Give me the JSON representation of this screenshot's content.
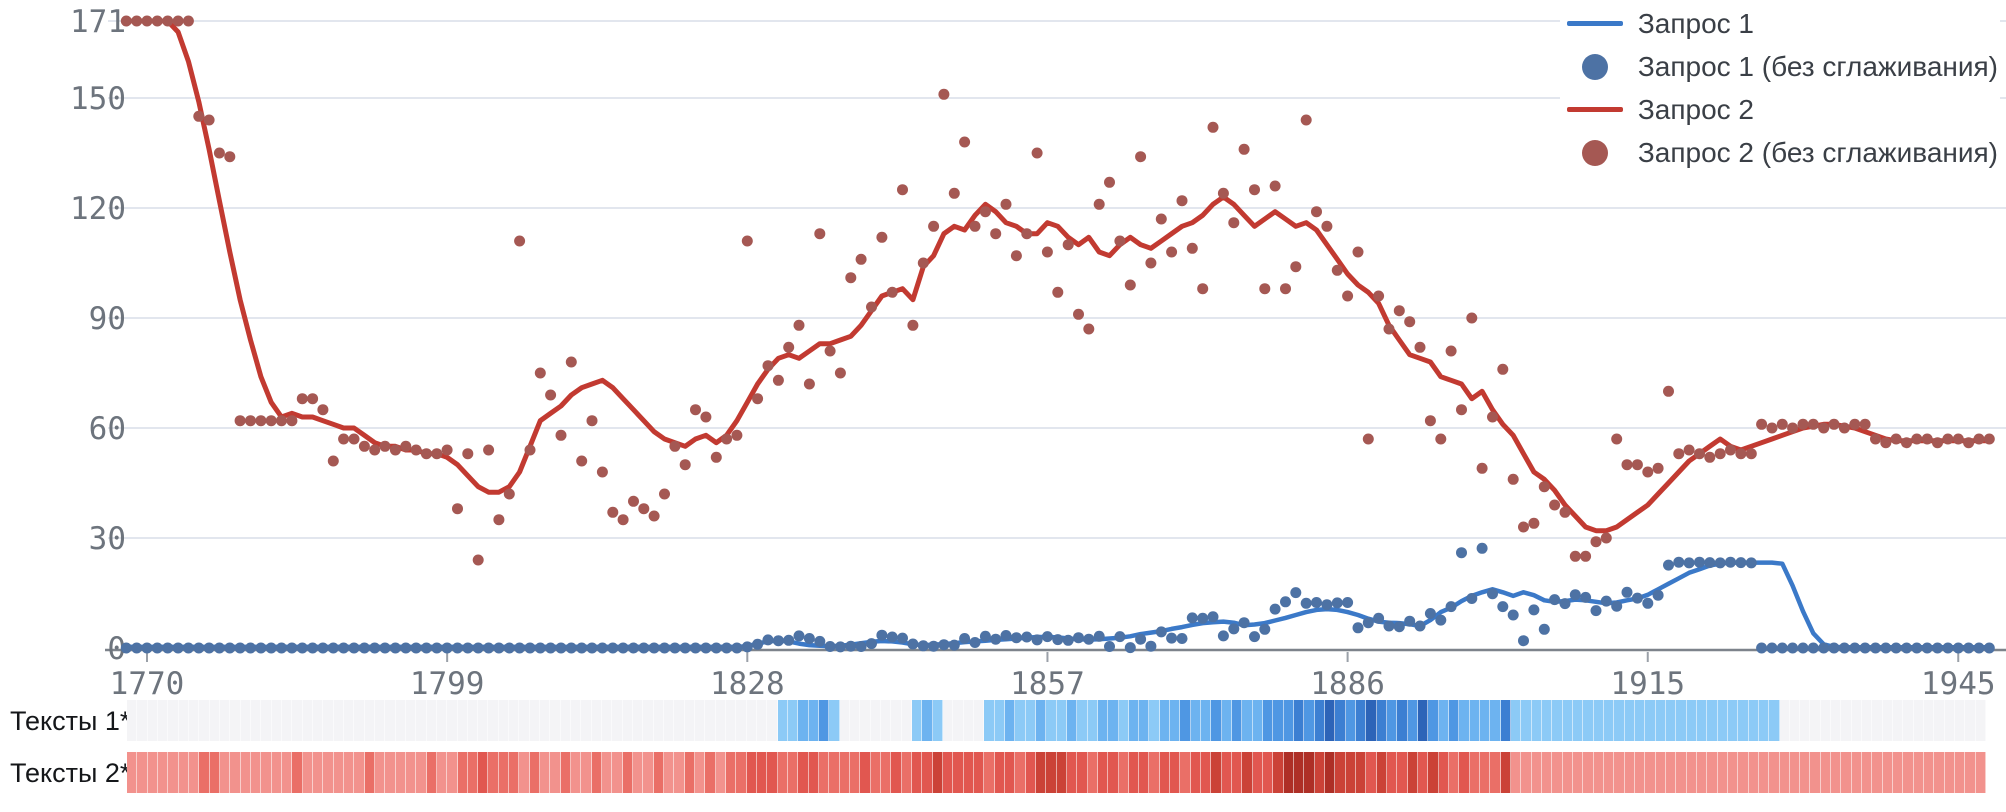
{
  "legend": {
    "items": [
      {
        "label": "Запрос 1",
        "type": "line",
        "color": "#3b79c8"
      },
      {
        "label": "Запрос 1 (без сглаживания)",
        "type": "dot",
        "color": "#4d72a4"
      },
      {
        "label": "Запрос 2",
        "type": "line",
        "color": "#c23a31"
      },
      {
        "label": "Запрос 2 (без сглаживания)",
        "type": "dot",
        "color": "#a55853"
      }
    ]
  },
  "strips": {
    "texts1_label": "Тексты 1*",
    "texts2_label": "Тексты 2*"
  },
  "chart_data": {
    "type": "line",
    "title": "",
    "xlabel": "",
    "ylabel": "",
    "grid": true,
    "legend_position": "top-right",
    "x_range": [
      1768,
      1948
    ],
    "ylim": [
      0,
      171
    ],
    "y_ticks": [
      0,
      30,
      60,
      90,
      120,
      150,
      171
    ],
    "y_tick_labels": [
      "0",
      "30",
      "60",
      "90",
      "120",
      "150",
      "171"
    ],
    "x_ticks": [
      1770,
      1799,
      1828,
      1857,
      1886,
      1915,
      1945
    ],
    "x_tick_labels": [
      "1770",
      "1799",
      "1828",
      "1857",
      "1886",
      "1915",
      "1945"
    ],
    "series": [
      {
        "name": "Запрос 1",
        "type": "line",
        "color": "#3b79c8",
        "start_year": 1768,
        "values": [
          0.3,
          0.3,
          0.3,
          0.3,
          0.3,
          0.3,
          0.3,
          0.3,
          0.3,
          0.3,
          0.3,
          0.3,
          0.3,
          0.3,
          0.3,
          0.3,
          0.3,
          0.3,
          0.3,
          0.3,
          0.3,
          0.3,
          0.3,
          0.3,
          0.3,
          0.3,
          0.3,
          0.3,
          0.3,
          0.3,
          0.3,
          0.3,
          0.3,
          0.3,
          0.3,
          0.3,
          0.3,
          0.3,
          0.3,
          0.3,
          0.3,
          0.3,
          0.3,
          0.3,
          0.3,
          0.3,
          0.3,
          0.3,
          0.3,
          0.3,
          0.3,
          0.3,
          0.3,
          0.3,
          0.3,
          0.3,
          0.3,
          0.3,
          0.3,
          0.3,
          0.5,
          1.2,
          1.8,
          2,
          1.8,
          1.2,
          0.8,
          0.6,
          0.5,
          0.6,
          0.9,
          1.3,
          1.7,
          1.9,
          1.8,
          1.5,
          1,
          0.8,
          0.9,
          1.1,
          1.3,
          1.6,
          1.8,
          2,
          2.2,
          2.4,
          2.6,
          2.8,
          3,
          3,
          2.9,
          2.6,
          2.4,
          2.3,
          2.4,
          2.6,
          2.8,
          3.2,
          3.8,
          4.2,
          4.6,
          5.2,
          5.7,
          6.3,
          6.8,
          7,
          7.2,
          6.9,
          6.2,
          6.4,
          6.8,
          7.5,
          8.2,
          9,
          9.8,
          10.4,
          10.6,
          10.4,
          9.8,
          9,
          8,
          7.2,
          6.9,
          6.8,
          6.5,
          6,
          7.6,
          9.8,
          11,
          12.8,
          14.2,
          15.2,
          16,
          15.2,
          14.2,
          15.2,
          14.4,
          13,
          12.6,
          12.8,
          13.2,
          13,
          12.6,
          12.2,
          12.4,
          13,
          13.5,
          14.5,
          16,
          17.5,
          19,
          20.5,
          21.5,
          22.5,
          23,
          23.3,
          23.3,
          23.3,
          23.3,
          23.3,
          23,
          17,
          10,
          4,
          1,
          0.3,
          0.2,
          0.2,
          0.2,
          0.2,
          0.2,
          0.2,
          0.2,
          0.2,
          0.2,
          0.2,
          0.2,
          0.2,
          0.2,
          0.2,
          0.2
        ]
      },
      {
        "name": "Запрос 1 (без сглаживания)",
        "type": "scatter",
        "color": "#4d72a4",
        "start_year": 1768,
        "values": [
          0,
          0,
          0,
          0,
          0,
          0,
          0,
          0,
          0,
          0,
          0,
          0,
          0,
          0,
          0,
          0,
          0,
          0,
          0,
          0,
          0,
          0,
          0,
          0,
          0,
          0,
          0,
          0,
          0,
          0,
          0,
          0,
          0,
          0,
          0,
          0,
          0,
          0,
          0,
          0,
          0,
          0,
          0,
          0,
          0,
          0,
          0,
          0,
          0,
          0,
          0,
          0,
          0,
          0,
          0,
          0,
          0,
          0,
          0,
          0,
          0.3,
          1,
          2.2,
          2,
          2.1,
          3.3,
          2.6,
          1.8,
          0.4,
          0.3,
          0.5,
          0.4,
          1.2,
          3.5,
          3,
          2.7,
          1.1,
          0.6,
          0.5,
          0.9,
          0.8,
          2.6,
          1.5,
          3.2,
          2.4,
          3.4,
          2.8,
          3,
          2.2,
          3.1,
          2.3,
          2.1,
          2.8,
          2.4,
          3.2,
          0.4,
          3.1,
          0.1,
          2.4,
          0.5,
          4.4,
          2.7,
          2.6,
          8.2,
          8.1,
          8.5,
          3.3,
          5.2,
          6.9,
          3.1,
          5.1,
          10.6,
          12.6,
          15.1,
          12.2,
          12.4,
          11.8,
          12.3,
          12.4,
          5.5,
          6.9,
          8.1,
          6,
          5.8,
          7.3,
          6,
          9.4,
          7.6,
          11.3,
          26,
          13.5,
          27.2,
          14.8,
          11.3,
          9,
          2,
          10.4,
          5.1,
          13.2,
          12.1,
          14.5,
          13.8,
          10.2,
          12.8,
          11.4,
          15.2,
          13.6,
          12.2,
          14.4,
          22.6,
          23.4,
          23.2,
          23.4,
          23.3,
          23.2,
          23.4,
          23.3,
          23.2,
          0,
          0,
          0,
          0,
          0,
          0,
          0,
          0,
          0,
          0,
          0,
          0,
          0,
          0,
          0,
          0,
          0,
          0,
          0,
          0,
          0,
          0,
          0
        ]
      },
      {
        "name": "Запрос 2",
        "type": "line",
        "color": "#c23a31",
        "start_year": 1768,
        "values": [
          171,
          171,
          171,
          171,
          171,
          168,
          160,
          149,
          136,
          122,
          108,
          95,
          84,
          74,
          67,
          63,
          64,
          63,
          63,
          62,
          61,
          60,
          60,
          58,
          56,
          55,
          55,
          54,
          54,
          53,
          53,
          52,
          50,
          47,
          44,
          42.5,
          42.5,
          44,
          48,
          55,
          62,
          64,
          66,
          69,
          71,
          72,
          73,
          71,
          68,
          65,
          62,
          59,
          57,
          56,
          55,
          57,
          58,
          56,
          58,
          62,
          67,
          72,
          76,
          79,
          80,
          79,
          81,
          83,
          83,
          84,
          85,
          88,
          92,
          96,
          97,
          98,
          95,
          104,
          107,
          113,
          115,
          114,
          118,
          121,
          119,
          116,
          115,
          113,
          113,
          116,
          115,
          112,
          110,
          112,
          108,
          107,
          110,
          112,
          110,
          109,
          111,
          113,
          115,
          116,
          118,
          121,
          123,
          121,
          118,
          115,
          117,
          119,
          117,
          115,
          116,
          114,
          110,
          106,
          102,
          99,
          97,
          94,
          88,
          84,
          80,
          79,
          78,
          74,
          73,
          72,
          68,
          70,
          65,
          61,
          58,
          53,
          48,
          46,
          43,
          39,
          36,
          33,
          32,
          32,
          33,
          35,
          37,
          39,
          42,
          45,
          48,
          51,
          53,
          55,
          57,
          55,
          54,
          55,
          56,
          57,
          58,
          59,
          60,
          60.5,
          61,
          61,
          60.5,
          60,
          59,
          58,
          57,
          56.5,
          56.5,
          56.5,
          56.5,
          56.5,
          56.5,
          56.5,
          56.5,
          56.5,
          56.5
        ]
      },
      {
        "name": "Запрос 2 (без сглаживания)",
        "type": "scatter",
        "color": "#a55853",
        "start_year": 1768,
        "values": [
          171,
          171,
          171,
          171,
          171,
          171,
          171,
          145,
          144,
          135,
          134,
          62,
          62,
          62,
          62,
          62,
          62,
          68,
          68,
          65,
          51,
          57,
          57,
          55,
          54,
          55,
          54,
          55,
          54,
          53,
          53,
          54,
          38,
          53,
          24,
          54,
          35,
          42,
          111,
          54,
          75,
          69,
          58,
          78,
          51,
          62,
          48,
          37,
          35,
          40,
          38,
          36,
          42,
          55,
          50,
          65,
          63,
          52,
          57,
          58,
          111,
          68,
          77,
          73,
          82,
          88,
          72,
          113,
          81,
          75,
          101,
          106,
          93,
          112,
          97,
          125,
          88,
          105,
          115,
          151,
          124,
          138,
          115,
          119,
          113,
          121,
          107,
          113,
          135,
          108,
          97,
          110,
          91,
          87,
          121,
          127,
          111,
          99,
          134,
          105,
          117,
          108,
          122,
          109,
          98,
          142,
          124,
          116,
          136,
          125,
          98,
          126,
          98,
          104,
          144,
          119,
          115,
          103,
          96,
          108,
          57,
          96,
          87,
          92,
          89,
          82,
          62,
          57,
          81,
          65,
          90,
          49,
          63,
          76,
          46,
          33,
          34,
          44,
          39,
          37,
          25,
          25,
          29,
          30,
          57,
          50,
          50,
          48,
          49,
          70,
          53,
          54,
          53,
          52,
          53,
          54,
          53,
          53,
          61,
          60,
          61,
          60,
          61,
          61,
          60,
          61,
          60,
          61,
          61,
          57,
          56,
          57,
          56,
          57,
          57,
          56,
          57,
          57,
          56,
          57,
          57
        ]
      }
    ],
    "heatmaps": [
      {
        "name": "Тексты 1*",
        "start_year": 1768,
        "palette": [
          "#f4f4f6",
          "#8ccaf6",
          "#6db3f0",
          "#4f97e3",
          "#3c7fd2",
          "#2d64b8"
        ],
        "levels": [
          0,
          0,
          0,
          0,
          0,
          0,
          0,
          0,
          0,
          0,
          0,
          0,
          0,
          0,
          0,
          0,
          0,
          0,
          0,
          0,
          0,
          0,
          0,
          0,
          0,
          0,
          0,
          0,
          0,
          0,
          0,
          0,
          0,
          0,
          0,
          0,
          0,
          0,
          0,
          0,
          0,
          0,
          0,
          0,
          0,
          0,
          0,
          0,
          0,
          0,
          0,
          0,
          0,
          0,
          0,
          0,
          0,
          0,
          0,
          0,
          0,
          0,
          0,
          1,
          1,
          2,
          2,
          3,
          1,
          0,
          0,
          0,
          0,
          0,
          0,
          0,
          1,
          2,
          1,
          0,
          0,
          0,
          0,
          1,
          1,
          2,
          1,
          1,
          2,
          1,
          1,
          2,
          1,
          1,
          2,
          2,
          1,
          2,
          2,
          1,
          2,
          2,
          3,
          2,
          2,
          3,
          2,
          3,
          2,
          2,
          3,
          3,
          3,
          4,
          3,
          4,
          5,
          4,
          3,
          4,
          5,
          4,
          3,
          4,
          3,
          5,
          3,
          2,
          3,
          2,
          2,
          2,
          2,
          4,
          1,
          1,
          1,
          1,
          1,
          1,
          1,
          1,
          1,
          1,
          1,
          1,
          1,
          1,
          1,
          1,
          1,
          1,
          1,
          1,
          1,
          1,
          1,
          1,
          1,
          1,
          0,
          0,
          0,
          0,
          0,
          0,
          0,
          0,
          0,
          0,
          0,
          0,
          0,
          0,
          0,
          0,
          0,
          0,
          0,
          0
        ]
      },
      {
        "name": "Тексты 2*",
        "start_year": 1768,
        "palette": [
          "#f4f4f6",
          "#f2928d",
          "#ea6f67",
          "#e15750",
          "#cb4237",
          "#ae2f26"
        ],
        "levels": [
          1,
          1,
          1,
          1,
          1,
          1,
          1,
          2,
          2,
          1,
          1,
          1,
          1,
          1,
          1,
          1,
          2,
          1,
          1,
          1,
          1,
          1,
          1,
          2,
          1,
          1,
          1,
          1,
          1,
          2,
          1,
          1,
          2,
          2,
          3,
          2,
          2,
          2,
          1,
          2,
          1,
          1,
          2,
          1,
          1,
          2,
          1,
          1,
          2,
          1,
          1,
          2,
          1,
          1,
          2,
          1,
          2,
          1,
          2,
          2,
          3,
          3,
          3,
          2,
          2,
          3,
          3,
          2,
          2,
          2,
          2,
          3,
          2,
          2,
          3,
          2,
          3,
          3,
          4,
          3,
          3,
          3,
          3,
          2,
          3,
          3,
          2,
          3,
          4,
          4,
          4,
          3,
          3,
          2,
          3,
          3,
          2,
          3,
          3,
          2,
          3,
          3,
          2,
          3,
          3,
          4,
          3,
          3,
          4,
          3,
          3,
          4,
          5,
          5,
          5,
          4,
          5,
          4,
          4,
          4,
          3,
          4,
          3,
          3,
          4,
          3,
          4,
          3,
          2,
          3,
          2,
          2,
          2,
          4,
          1,
          1,
          1,
          1,
          1,
          1,
          1,
          1,
          1,
          1,
          1,
          1,
          1,
          1,
          1,
          1,
          1,
          1,
          1,
          1,
          1,
          1,
          1,
          1,
          1,
          1,
          1,
          1,
          1,
          1,
          1,
          1,
          1,
          1,
          1,
          1,
          1,
          1,
          1,
          1,
          1,
          1,
          1,
          1,
          1,
          1
        ]
      }
    ]
  }
}
